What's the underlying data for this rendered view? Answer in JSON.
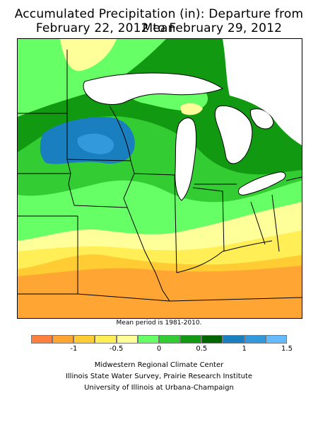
{
  "title_line1": "Accumulated Precipitation (in): Departure from Mean",
  "title_line2": "February 22, 2012 to February 29, 2012",
  "mean_note": "Mean period is 1981-2010.",
  "legend": {
    "colors": [
      "#ff7f3f",
      "#ffa533",
      "#ffcc33",
      "#ffee55",
      "#ffff99",
      "#66ff66",
      "#33cc33",
      "#119911",
      "#006600",
      "#1a7fbf",
      "#3399dd",
      "#66bbff"
    ],
    "ticks": [
      "-1",
      "-0.5",
      "0",
      "0.5",
      "1",
      "1.5"
    ],
    "tick_values": [
      -1,
      -0.5,
      0,
      0.5,
      1,
      1.5
    ],
    "min": -1.5,
    "max": 1.5
  },
  "credits": {
    "line1": "Midwestern Regional Climate Center",
    "line2": "Illinois State Water Survey, Prairie Research Institute",
    "line3": "University of Illinois at Urbana-Champaign"
  }
}
